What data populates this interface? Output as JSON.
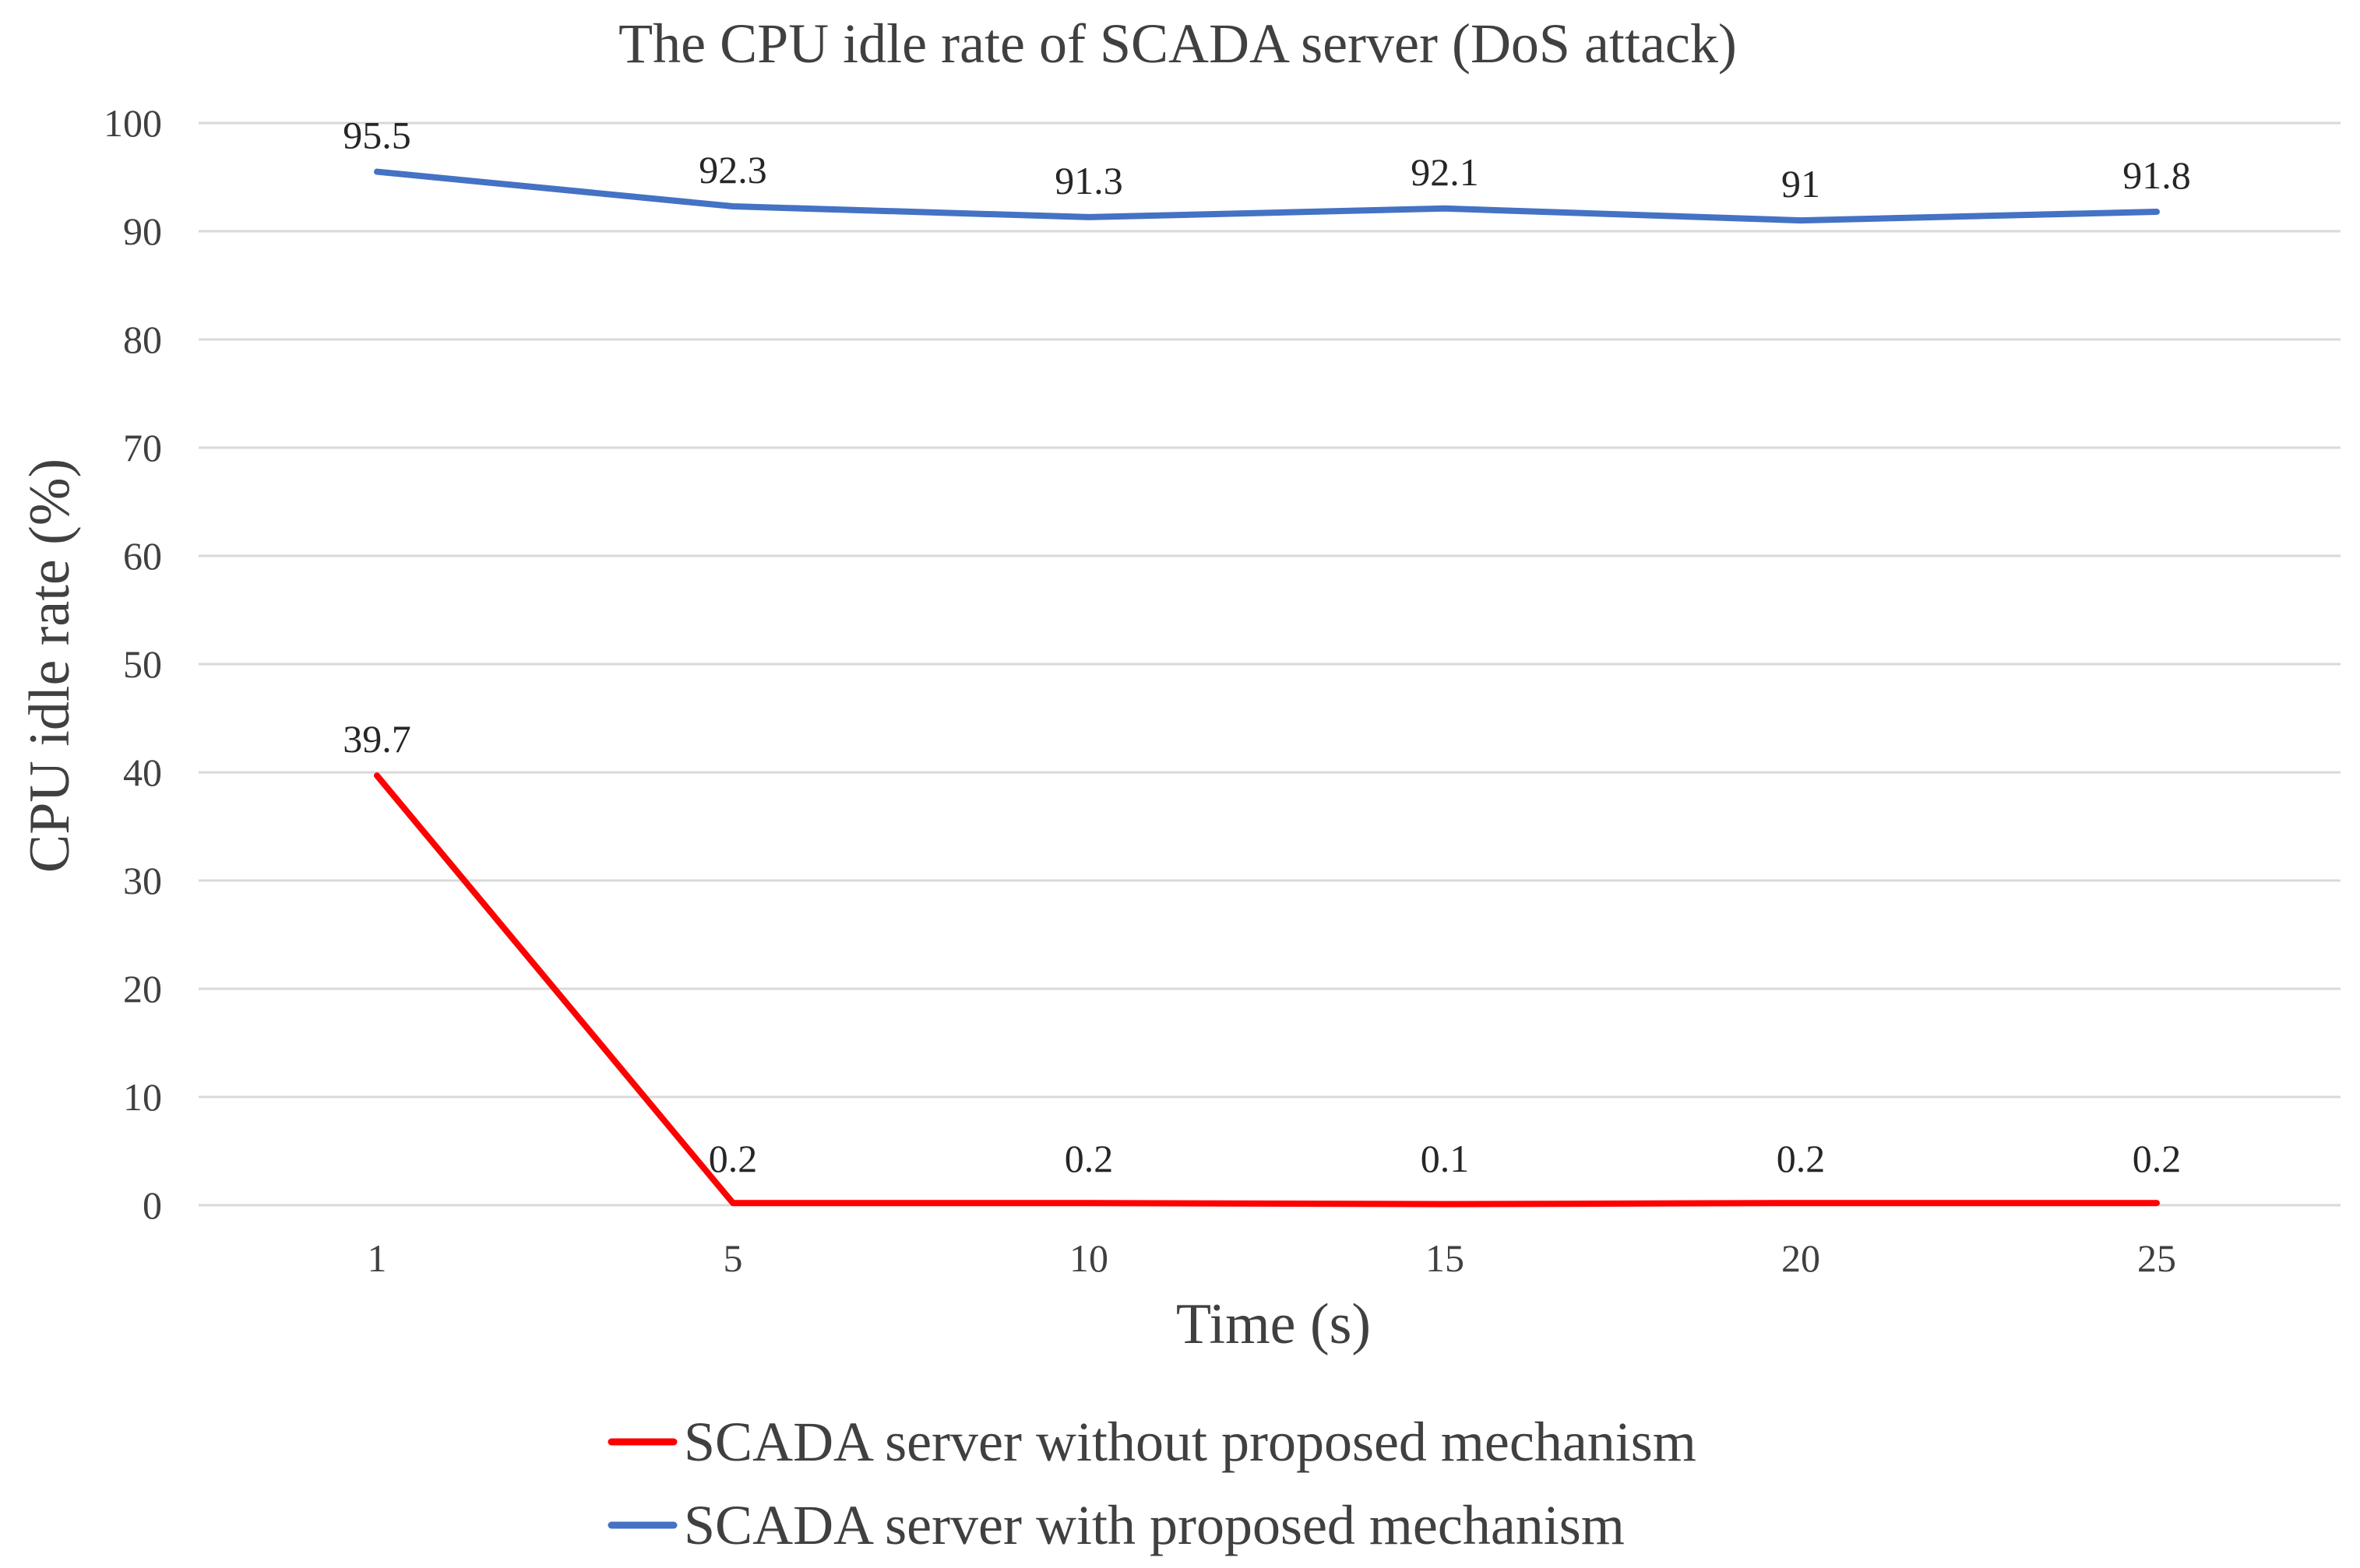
{
  "chart_data": {
    "type": "line",
    "title": "The CPU idle rate of SCADA server (DoS attack)",
    "xlabel": "Time (s)",
    "ylabel": "CPU idle rate (%)",
    "categories": [
      "1",
      "5",
      "10",
      "15",
      "20",
      "25"
    ],
    "ylim": [
      0,
      100
    ],
    "yticks": [
      0,
      10,
      20,
      30,
      40,
      50,
      60,
      70,
      80,
      90,
      100
    ],
    "grid": true,
    "legend_position": "bottom",
    "series": [
      {
        "name": "SCADA server without proposed mechanism",
        "color": "#ff0000",
        "values": [
          39.7,
          0.2,
          0.2,
          0.1,
          0.2,
          0.2
        ],
        "labels": [
          "39.7",
          "0.2",
          "0.2",
          "0.1",
          "0.2",
          "0.2"
        ]
      },
      {
        "name": "SCADA server with proposed mechanism",
        "color": "#4472c4",
        "values": [
          95.5,
          92.3,
          91.3,
          92.1,
          91,
          91.8
        ],
        "labels": [
          "95.5",
          "92.3",
          "91.3",
          "92.1",
          "91",
          "91.8"
        ]
      }
    ]
  }
}
